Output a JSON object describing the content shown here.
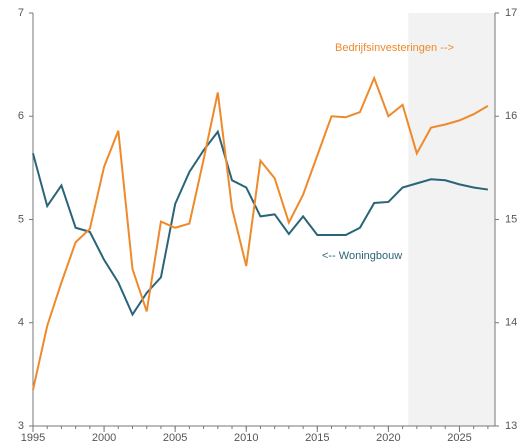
{
  "chart_data": {
    "type": "line",
    "x": [
      1995,
      1996,
      1997,
      1998,
      1999,
      2000,
      2001,
      2002,
      2003,
      2004,
      2005,
      2006,
      2007,
      2008,
      2009,
      2010,
      2011,
      2012,
      2013,
      2014,
      2015,
      2016,
      2017,
      2018,
      2019,
      2020,
      2021,
      2022,
      2023,
      2024,
      2025,
      2026,
      2027
    ],
    "series": [
      {
        "name": "<-- Woningbouw",
        "color": "#2a6478",
        "axis": "y",
        "values": [
          5.64,
          5.13,
          5.33,
          4.92,
          4.88,
          4.61,
          4.39,
          4.08,
          4.29,
          4.44,
          5.15,
          5.46,
          5.67,
          5.85,
          5.38,
          5.31,
          5.03,
          5.05,
          4.86,
          5.03,
          4.85,
          4.85,
          4.85,
          4.92,
          5.16,
          5.17,
          5.31,
          5.35,
          5.39,
          5.38,
          5.34,
          5.31,
          5.29
        ]
      },
      {
        "name": "Bedrijfsinvesteringen -->",
        "color": "#ee8a2b",
        "axis": "y2",
        "values": [
          13.35,
          13.97,
          14.39,
          14.78,
          14.91,
          15.51,
          15.86,
          14.52,
          14.11,
          14.98,
          14.92,
          14.96,
          15.58,
          16.23,
          15.11,
          14.55,
          15.57,
          15.4,
          14.97,
          15.24,
          15.62,
          16.0,
          15.99,
          16.04,
          16.37,
          16.0,
          16.11,
          15.64,
          15.89,
          15.92,
          15.96,
          16.02,
          16.1
        ]
      }
    ],
    "xlim": [
      1995,
      2027.5
    ],
    "xticks": [
      1995,
      2000,
      2005,
      2010,
      2015,
      2020,
      2025
    ],
    "ylim": [
      3,
      7
    ],
    "yticks": [
      3,
      4,
      5,
      6,
      7
    ],
    "y2lim": [
      13,
      17
    ],
    "y2ticks": [
      13,
      14,
      15,
      16,
      17
    ],
    "shaded_xrange": [
      2021.4,
      2027.5
    ],
    "shade_color": "#f2f2f2"
  }
}
